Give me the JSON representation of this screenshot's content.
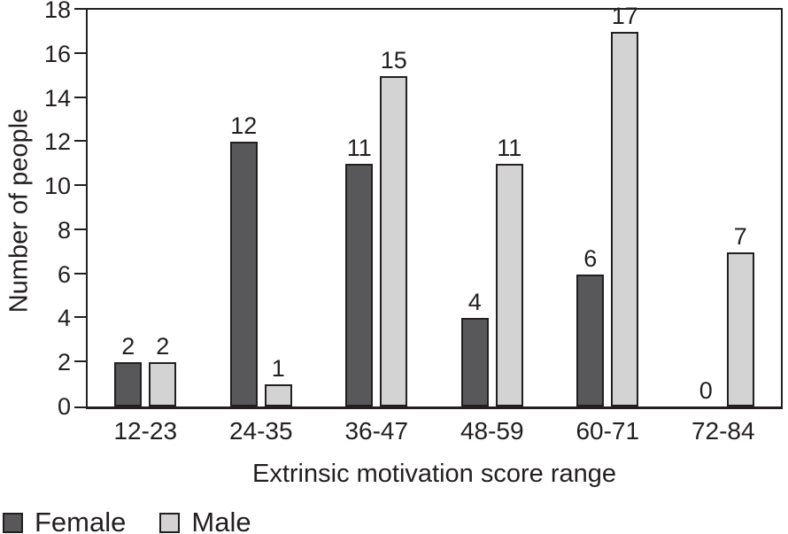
{
  "chart_data": {
    "type": "bar",
    "title": "",
    "categories": [
      "12-23",
      "24-35",
      "36-47",
      "48-59",
      "60-71",
      "72-84"
    ],
    "series": [
      {
        "name": "Female",
        "color": "#58585a",
        "values": [
          2,
          12,
          11,
          4,
          6,
          0
        ]
      },
      {
        "name": "Male",
        "color": "#d3d3d4",
        "values": [
          2,
          1,
          15,
          11,
          17,
          7
        ]
      }
    ],
    "xlabel": "Extrinsic motivation score range",
    "ylabel": "Number of people",
    "ylim": [
      0,
      18
    ],
    "yticks": [
      0,
      2,
      4,
      6,
      8,
      10,
      12,
      14,
      16,
      18
    ],
    "bar_value_labels": true,
    "grid": false,
    "legend_position": "bottom-left",
    "colors": {
      "axis": "#231f20",
      "text": "#231f20",
      "female_fill": "#58585a",
      "male_fill": "#d3d3d4",
      "background": "#ffffff"
    }
  }
}
